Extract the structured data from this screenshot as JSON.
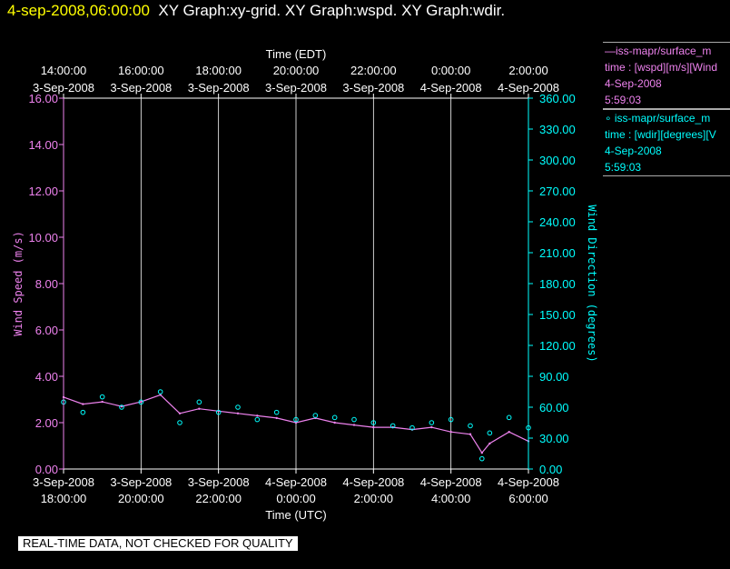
{
  "header": {
    "timestamp": "4-sep-2008,06:00:00",
    "graphs": "XY Graph:xy-grid.  XY Graph:wspd.  XY Graph:wdir."
  },
  "legend": {
    "speed": {
      "line1": "—iss-mapr/surface_m",
      "line2": "time : [wspd][m/s][Wind",
      "line3": "4-Sep-2008",
      "line4": "5:59:03"
    },
    "direction": {
      "line1": "∘ iss-mapr/surface_m",
      "line2": "time : [wdir][degrees][V",
      "line3": "4-Sep-2008",
      "line4": "5:59:03"
    }
  },
  "disclaimer": "REAL-TIME DATA, NOT CHECKED FOR QUALITY",
  "colors": {
    "speed": "#ee82ee",
    "direction": "#00ffff",
    "axis": "#ffffff",
    "grid": "#ffffff"
  },
  "chart_data": {
    "type": "line",
    "x_unit": "hours since 3-Sep-2008 18:00 UTC",
    "xlim": [
      0,
      12
    ],
    "top_axis": {
      "label": "Time (EDT)",
      "ticks": [
        {
          "t": 0,
          "time": "14:00:00",
          "date": "3-Sep-2008"
        },
        {
          "t": 2,
          "time": "16:00:00",
          "date": "3-Sep-2008"
        },
        {
          "t": 4,
          "time": "18:00:00",
          "date": "3-Sep-2008"
        },
        {
          "t": 6,
          "time": "20:00:00",
          "date": "3-Sep-2008"
        },
        {
          "t": 8,
          "time": "22:00:00",
          "date": "3-Sep-2008"
        },
        {
          "t": 10,
          "time": "0:00:00",
          "date": "4-Sep-2008"
        },
        {
          "t": 12,
          "time": "2:00:00",
          "date": "4-Sep-2008"
        }
      ]
    },
    "bottom_axis": {
      "label": "Time (UTC)",
      "ticks": [
        {
          "t": 0,
          "date": "3-Sep-2008",
          "time": "18:00:00"
        },
        {
          "t": 2,
          "date": "3-Sep-2008",
          "time": "20:00:00"
        },
        {
          "t": 4,
          "date": "3-Sep-2008",
          "time": "22:00:00"
        },
        {
          "t": 6,
          "date": "4-Sep-2008",
          "time": "0:00:00"
        },
        {
          "t": 8,
          "date": "4-Sep-2008",
          "time": "2:00:00"
        },
        {
          "t": 10,
          "date": "4-Sep-2008",
          "time": "4:00:00"
        },
        {
          "t": 12,
          "date": "4-Sep-2008",
          "time": "6:00:00"
        }
      ]
    },
    "left_axis": {
      "label": "Wind Speed (m/s)",
      "ylim": [
        0,
        16
      ],
      "ticks": [
        "0.00",
        "2.00",
        "4.00",
        "6.00",
        "8.00",
        "10.00",
        "12.00",
        "14.00",
        "16.00"
      ]
    },
    "right_axis": {
      "label": "Wind Direction (degrees)",
      "ylim": [
        0,
        360
      ],
      "ticks": [
        "0.00",
        "30.00",
        "60.00",
        "90.00",
        "120.00",
        "150.00",
        "180.00",
        "210.00",
        "240.00",
        "270.00",
        "300.00",
        "330.00",
        "360.00"
      ]
    },
    "series": [
      {
        "name": "wspd",
        "style": "line",
        "x": [
          0,
          0.5,
          1,
          1.5,
          2,
          2.5,
          3,
          3.5,
          4,
          4.5,
          5,
          5.5,
          6,
          6.5,
          7,
          7.5,
          8,
          8.5,
          9,
          9.5,
          10,
          10.5,
          10.8,
          11,
          11.5,
          12
        ],
        "y": [
          3.1,
          2.8,
          2.9,
          2.7,
          2.9,
          3.2,
          2.4,
          2.6,
          2.5,
          2.4,
          2.3,
          2.2,
          2.0,
          2.2,
          2.0,
          1.9,
          1.8,
          1.8,
          1.7,
          1.8,
          1.6,
          1.5,
          0.7,
          1.1,
          1.6,
          1.2
        ]
      },
      {
        "name": "wdir",
        "style": "markers",
        "x": [
          0,
          0.5,
          1,
          1.5,
          2,
          2.5,
          3,
          3.5,
          4,
          4.5,
          5,
          5.5,
          6,
          6.5,
          7,
          7.5,
          8,
          8.5,
          9,
          9.5,
          10,
          10.5,
          10.8,
          11,
          11.5,
          12
        ],
        "y": [
          65,
          55,
          70,
          60,
          65,
          75,
          45,
          65,
          55,
          60,
          48,
          55,
          48,
          52,
          50,
          48,
          45,
          42,
          40,
          45,
          48,
          42,
          10,
          35,
          50,
          40
        ]
      }
    ]
  }
}
